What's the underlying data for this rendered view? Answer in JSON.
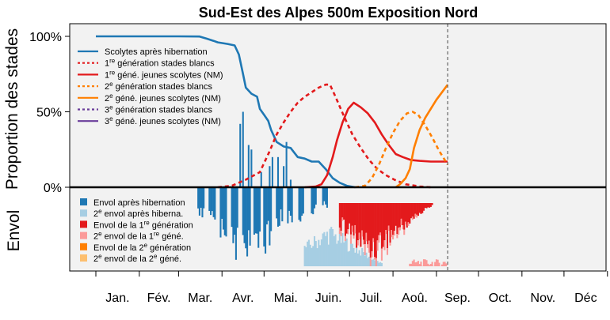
{
  "chart_data": {
    "type": "line",
    "title": "Sud-Est des Alpes 500m Exposition Nord",
    "ylabel_top": "Proportion des stades",
    "ylabel_bottom": "Envol",
    "yticks": [
      "100%",
      "50%",
      "0%"
    ],
    "ylim": [
      0,
      1.05
    ],
    "months": [
      "Jan.",
      "Fév.",
      "Mar.",
      "Avr.",
      "Mai.",
      "Juin.",
      "Juil.",
      "Aoû.",
      "Sep.",
      "Oct.",
      "Nov.",
      "Déc"
    ],
    "x_unit": "day of year",
    "current_day": 252,
    "legend_top": [
      {
        "pre": "Scolytes après hibernation",
        "sup": "",
        "post": "",
        "color": "#1f78b4",
        "dash": false
      },
      {
        "pre": "1",
        "sup": "re",
        "post": " génération stades blancs",
        "color": "#e31a1c",
        "dash": true
      },
      {
        "pre": "1",
        "sup": "re",
        "post": " géné. jeunes scolytes (NM)",
        "color": "#e31a1c",
        "dash": false
      },
      {
        "pre": "2",
        "sup": "e",
        "post": " génération stades blancs",
        "color": "#ff7f00",
        "dash": true
      },
      {
        "pre": "2",
        "sup": "e",
        "post": " géné. jeunes scolytes (NM)",
        "color": "#ff7f00",
        "dash": false
      },
      {
        "pre": "3",
        "sup": "e",
        "post": " génération stades blancs",
        "color": "#6a3d9a",
        "dash": true
      },
      {
        "pre": "3",
        "sup": "e",
        "post": " géné. jeunes scolytes (NM)",
        "color": "#6a3d9a",
        "dash": false
      }
    ],
    "legend_bottom": [
      {
        "pre": "Envol après hibernation",
        "sup": "",
        "post": "",
        "color": "#1f78b4"
      },
      {
        "pre": "2",
        "sup": "e",
        "post": " envol après hiberna.",
        "color": "#a6cee3"
      },
      {
        "pre": "Envol de la 1",
        "sup": "re",
        "post": " génération",
        "color": "#e31a1c"
      },
      {
        "pre": "2",
        "sup": "e",
        "post": " envol de la 1",
        "sup2": "re",
        "post2": " géné.",
        "color": "#fb9a99"
      },
      {
        "pre": "Envol de la 2",
        "sup": "e",
        "post": " génération",
        "color": "#ff7f00"
      },
      {
        "pre": "2",
        "sup": "e",
        "post": " envol de la 2",
        "sup2": "e",
        "post2": " géné.",
        "color": "#fdbf6f"
      }
    ],
    "series": [
      {
        "name": "Scolytes après hibernation",
        "color": "#1f78b4",
        "dash": false,
        "points": [
          [
            1,
            1.0
          ],
          [
            60,
            1.0
          ],
          [
            75,
            0.999
          ],
          [
            80,
            0.985
          ],
          [
            85,
            0.97
          ],
          [
            88,
            0.96
          ],
          [
            95,
            0.95
          ],
          [
            100,
            0.94
          ],
          [
            103,
            0.88
          ],
          [
            106,
            0.75
          ],
          [
            108,
            0.66
          ],
          [
            112,
            0.62
          ],
          [
            116,
            0.6
          ],
          [
            118,
            0.52
          ],
          [
            121,
            0.48
          ],
          [
            124,
            0.44
          ],
          [
            126,
            0.38
          ],
          [
            130,
            0.3
          ],
          [
            135,
            0.27
          ],
          [
            140,
            0.26
          ],
          [
            145,
            0.2
          ],
          [
            150,
            0.19
          ],
          [
            155,
            0.17
          ],
          [
            160,
            0.17
          ],
          [
            165,
            0.12
          ],
          [
            170,
            0.06
          ],
          [
            175,
            0.03
          ],
          [
            180,
            0.01
          ],
          [
            186,
            0.0
          ]
        ]
      },
      {
        "name": "1re génération stades blancs",
        "color": "#e31a1c",
        "dash": true,
        "points": [
          [
            88,
            0.0
          ],
          [
            98,
            0.01
          ],
          [
            108,
            0.05
          ],
          [
            118,
            0.1
          ],
          [
            125,
            0.24
          ],
          [
            130,
            0.35
          ],
          [
            135,
            0.43
          ],
          [
            140,
            0.5
          ],
          [
            145,
            0.56
          ],
          [
            150,
            0.6
          ],
          [
            155,
            0.63
          ],
          [
            160,
            0.66
          ],
          [
            165,
            0.68
          ],
          [
            168,
            0.68
          ],
          [
            172,
            0.6
          ],
          [
            178,
            0.47
          ],
          [
            184,
            0.35
          ],
          [
            190,
            0.26
          ],
          [
            196,
            0.18
          ],
          [
            202,
            0.12
          ],
          [
            208,
            0.08
          ],
          [
            214,
            0.05
          ],
          [
            222,
            0.02
          ],
          [
            232,
            0.005
          ],
          [
            240,
            0.0
          ]
        ]
      },
      {
        "name": "1re géné. jeunes scolytes (NM)",
        "color": "#e31a1c",
        "dash": false,
        "points": [
          [
            150,
            0.0
          ],
          [
            158,
            0.005
          ],
          [
            162,
            0.02
          ],
          [
            166,
            0.08
          ],
          [
            170,
            0.2
          ],
          [
            173,
            0.31
          ],
          [
            177,
            0.43
          ],
          [
            181,
            0.52
          ],
          [
            185,
            0.56
          ],
          [
            190,
            0.53
          ],
          [
            195,
            0.49
          ],
          [
            200,
            0.43
          ],
          [
            205,
            0.35
          ],
          [
            210,
            0.28
          ],
          [
            215,
            0.22
          ],
          [
            220,
            0.2
          ],
          [
            226,
            0.18
          ],
          [
            232,
            0.175
          ],
          [
            240,
            0.17
          ],
          [
            252,
            0.17
          ]
        ]
      },
      {
        "name": "2e génération stades blancs",
        "color": "#ff7f00",
        "dash": true,
        "points": [
          [
            186,
            0.0
          ],
          [
            193,
            0.01
          ],
          [
            198,
            0.06
          ],
          [
            203,
            0.15
          ],
          [
            208,
            0.26
          ],
          [
            213,
            0.36
          ],
          [
            218,
            0.44
          ],
          [
            223,
            0.49
          ],
          [
            227,
            0.5
          ],
          [
            231,
            0.48
          ],
          [
            236,
            0.41
          ],
          [
            241,
            0.33
          ],
          [
            246,
            0.24
          ],
          [
            250,
            0.18
          ],
          [
            252,
            0.15
          ]
        ]
      },
      {
        "name": "2e géné. jeunes scolytes (NM)",
        "color": "#ff7f00",
        "dash": false,
        "points": [
          [
            215,
            0.0
          ],
          [
            218,
            0.02
          ],
          [
            222,
            0.06
          ],
          [
            225,
            0.12
          ],
          [
            228,
            0.26
          ],
          [
            232,
            0.38
          ],
          [
            236,
            0.46
          ],
          [
            240,
            0.52
          ],
          [
            244,
            0.58
          ],
          [
            248,
            0.63
          ],
          [
            252,
            0.68
          ]
        ]
      }
    ]
  }
}
